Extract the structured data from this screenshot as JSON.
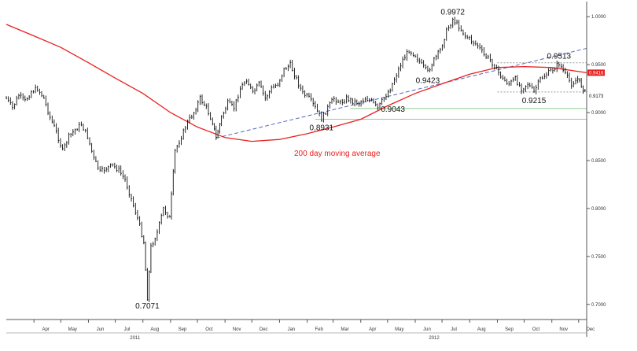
{
  "chart_data": {
    "type": "line",
    "subtype": "ohlc-bars",
    "title": "",
    "xlabel": "",
    "ylabel": "",
    "ylim": [
      0.6875,
      1.0125
    ],
    "x_start": "2011-03-01",
    "x_end": "2012-12-10",
    "grid": false,
    "y_axis_side": "right",
    "y_ticks": [
      {
        "value": 1.0,
        "label": "1.0000"
      },
      {
        "value": 0.95,
        "label": "0.9500"
      },
      {
        "value": 0.9,
        "label": "0.9000"
      },
      {
        "value": 0.85,
        "label": "0.8500"
      },
      {
        "value": 0.8,
        "label": "0.8000"
      },
      {
        "value": 0.75,
        "label": "0.7500"
      },
      {
        "value": 0.7,
        "label": "0.7000"
      }
    ],
    "x_ticks": [
      {
        "date": "2011-04-01",
        "label": "Apr"
      },
      {
        "date": "2011-05-01",
        "label": "May"
      },
      {
        "date": "2011-06-01",
        "label": "Jun"
      },
      {
        "date": "2011-07-01",
        "label": "Jul"
      },
      {
        "date": "2011-08-01",
        "label": "Aug"
      },
      {
        "date": "2011-09-01",
        "label": "Sep"
      },
      {
        "date": "2011-10-01",
        "label": "Oct"
      },
      {
        "date": "2011-11-01",
        "label": "Nov"
      },
      {
        "date": "2011-12-01",
        "label": "Dec"
      },
      {
        "date": "2012-01-01",
        "label": "Jan"
      },
      {
        "date": "2012-02-01",
        "label": "Feb"
      },
      {
        "date": "2012-03-01",
        "label": "Mar"
      },
      {
        "date": "2012-04-01",
        "label": "Apr"
      },
      {
        "date": "2012-05-01",
        "label": "May"
      },
      {
        "date": "2012-06-01",
        "label": "Jun"
      },
      {
        "date": "2012-07-01",
        "label": "Jul"
      },
      {
        "date": "2012-08-01",
        "label": "Aug"
      },
      {
        "date": "2012-09-01",
        "label": "Sep"
      },
      {
        "date": "2012-10-01",
        "label": "Oct"
      },
      {
        "date": "2012-11-01",
        "label": "Nov"
      },
      {
        "date": "2012-12-01",
        "label": "Dec"
      }
    ],
    "year_labels": [
      {
        "date": "2011-08-01",
        "label": "2011"
      },
      {
        "date": "2012-07-01",
        "label": "2012"
      }
    ],
    "series": [
      {
        "name": "price",
        "color": "#111111",
        "points": [
          [
            "2011-03-01",
            0.915
          ],
          [
            "2011-03-08",
            0.905
          ],
          [
            "2011-03-15",
            0.918
          ],
          [
            "2011-03-22",
            0.912
          ],
          [
            "2011-03-29",
            0.922
          ],
          [
            "2011-04-05",
            0.925
          ],
          [
            "2011-04-12",
            0.915
          ],
          [
            "2011-04-19",
            0.895
          ],
          [
            "2011-04-26",
            0.88
          ],
          [
            "2011-05-03",
            0.86
          ],
          [
            "2011-05-10",
            0.875
          ],
          [
            "2011-05-17",
            0.882
          ],
          [
            "2011-05-24",
            0.888
          ],
          [
            "2011-05-31",
            0.875
          ],
          [
            "2011-06-07",
            0.852
          ],
          [
            "2011-06-14",
            0.838
          ],
          [
            "2011-06-21",
            0.842
          ],
          [
            "2011-06-28",
            0.845
          ],
          [
            "2011-07-05",
            0.84
          ],
          [
            "2011-07-12",
            0.83
          ],
          [
            "2011-07-19",
            0.81
          ],
          [
            "2011-07-26",
            0.79
          ],
          [
            "2011-08-02",
            0.765
          ],
          [
            "2011-08-06",
            0.7071
          ],
          [
            "2011-08-10",
            0.76
          ],
          [
            "2011-08-17",
            0.775
          ],
          [
            "2011-08-24",
            0.8
          ],
          [
            "2011-08-31",
            0.79
          ],
          [
            "2011-09-06",
            0.86
          ],
          [
            "2011-09-13",
            0.875
          ],
          [
            "2011-09-20",
            0.89
          ],
          [
            "2011-09-27",
            0.9
          ],
          [
            "2011-10-04",
            0.915
          ],
          [
            "2011-10-11",
            0.905
          ],
          [
            "2011-10-18",
            0.89
          ],
          [
            "2011-10-22",
            0.8735
          ],
          [
            "2011-10-28",
            0.895
          ],
          [
            "2011-11-04",
            0.91
          ],
          [
            "2011-11-11",
            0.905
          ],
          [
            "2011-11-18",
            0.925
          ],
          [
            "2011-11-25",
            0.935
          ],
          [
            "2011-12-02",
            0.92
          ],
          [
            "2011-12-09",
            0.93
          ],
          [
            "2011-12-16",
            0.915
          ],
          [
            "2011-12-23",
            0.925
          ],
          [
            "2011-12-30",
            0.93
          ],
          [
            "2012-01-06",
            0.945
          ],
          [
            "2012-01-13",
            0.95
          ],
          [
            "2012-01-20",
            0.935
          ],
          [
            "2012-01-27",
            0.92
          ],
          [
            "2012-02-03",
            0.915
          ],
          [
            "2012-02-10",
            0.905
          ],
          [
            "2012-02-17",
            0.8931
          ],
          [
            "2012-02-24",
            0.905
          ],
          [
            "2012-03-02",
            0.915
          ],
          [
            "2012-03-09",
            0.91
          ],
          [
            "2012-03-16",
            0.915
          ],
          [
            "2012-03-23",
            0.912
          ],
          [
            "2012-03-30",
            0.91
          ],
          [
            "2012-04-06",
            0.915
          ],
          [
            "2012-04-13",
            0.912
          ],
          [
            "2012-04-20",
            0.9043
          ],
          [
            "2012-04-27",
            0.915
          ],
          [
            "2012-05-04",
            0.925
          ],
          [
            "2012-05-11",
            0.94
          ],
          [
            "2012-05-18",
            0.955
          ],
          [
            "2012-05-25",
            0.965
          ],
          [
            "2012-06-01",
            0.96
          ],
          [
            "2012-06-08",
            0.95
          ],
          [
            "2012-06-15",
            0.9423
          ],
          [
            "2012-06-22",
            0.955
          ],
          [
            "2012-06-29",
            0.965
          ],
          [
            "2012-07-06",
            0.985
          ],
          [
            "2012-07-13",
            0.9972
          ],
          [
            "2012-07-20",
            0.99
          ],
          [
            "2012-07-27",
            0.98
          ],
          [
            "2012-08-03",
            0.975
          ],
          [
            "2012-08-10",
            0.97
          ],
          [
            "2012-08-17",
            0.96
          ],
          [
            "2012-08-24",
            0.955
          ],
          [
            "2012-08-31",
            0.945
          ],
          [
            "2012-09-07",
            0.935
          ],
          [
            "2012-09-14",
            0.93
          ],
          [
            "2012-09-21",
            0.935
          ],
          [
            "2012-09-28",
            0.925
          ],
          [
            "2012-10-05",
            0.93
          ],
          [
            "2012-10-12",
            0.9215
          ],
          [
            "2012-10-19",
            0.935
          ],
          [
            "2012-10-26",
            0.94
          ],
          [
            "2012-11-02",
            0.945
          ],
          [
            "2012-11-09",
            0.9513
          ],
          [
            "2012-11-16",
            0.94
          ],
          [
            "2012-11-23",
            0.93
          ],
          [
            "2012-11-30",
            0.935
          ],
          [
            "2012-12-06",
            0.925
          ],
          [
            "2012-12-10",
            0.9173
          ]
        ]
      },
      {
        "name": "200 day moving average",
        "color": "#e8201e",
        "points": [
          [
            "2011-03-01",
            0.992
          ],
          [
            "2011-04-01",
            0.98
          ],
          [
            "2011-05-01",
            0.968
          ],
          [
            "2011-06-01",
            0.952
          ],
          [
            "2011-07-01",
            0.936
          ],
          [
            "2011-08-01",
            0.92
          ],
          [
            "2011-09-01",
            0.9
          ],
          [
            "2011-10-01",
            0.885
          ],
          [
            "2011-11-01",
            0.874
          ],
          [
            "2011-12-01",
            0.87
          ],
          [
            "2012-01-01",
            0.872
          ],
          [
            "2012-02-01",
            0.878
          ],
          [
            "2012-03-01",
            0.885
          ],
          [
            "2012-04-01",
            0.893
          ],
          [
            "2012-05-01",
            0.907
          ],
          [
            "2012-06-01",
            0.92
          ],
          [
            "2012-07-01",
            0.93
          ],
          [
            "2012-08-01",
            0.94
          ],
          [
            "2012-09-01",
            0.947
          ],
          [
            "2012-10-01",
            0.948
          ],
          [
            "2012-11-01",
            0.947
          ],
          [
            "2012-12-10",
            0.9416
          ]
        ]
      }
    ],
    "trendlines": [
      {
        "name": "support-trendline",
        "style": "dashed",
        "color": "#5566bb",
        "from": [
          "2011-10-22",
          0.8735
        ],
        "to": [
          "2012-12-10",
          0.967
        ]
      },
      {
        "name": "channel-upper",
        "style": "dotted",
        "color": "#999999",
        "from": [
          "2012-09-01",
          0.952
        ],
        "to": [
          "2012-12-10",
          0.952
        ]
      },
      {
        "name": "channel-lower",
        "style": "dotted",
        "color": "#999999",
        "from": [
          "2012-09-01",
          0.9215
        ],
        "to": [
          "2012-12-10",
          0.9215
        ]
      }
    ],
    "horizontal_lines": [
      {
        "name": "level-0.9043",
        "value": 0.9043,
        "color": "#8fce8f",
        "from": "2012-03-20"
      },
      {
        "name": "level-0.8931",
        "value": 0.8931,
        "color": "#8fce8f",
        "from": "2012-02-10"
      }
    ],
    "annotations": [
      {
        "text": "0.7071",
        "date": "2011-08-06",
        "value": 0.7071,
        "pos": "below"
      },
      {
        "text": "0.8931",
        "date": "2012-02-17",
        "value": 0.8931,
        "pos": "below"
      },
      {
        "text": "0.9043",
        "date": "2012-04-20",
        "value": 0.9043,
        "pos": "right"
      },
      {
        "text": "0.9423",
        "date": "2012-06-15",
        "value": 0.9423,
        "pos": "below"
      },
      {
        "text": "0.9972",
        "date": "2012-07-13",
        "value": 0.9972,
        "pos": "above"
      },
      {
        "text": "0.9215",
        "date": "2012-10-12",
        "value": 0.9215,
        "pos": "below"
      },
      {
        "text": "0.9513",
        "date": "2012-11-09",
        "value": 0.9513,
        "pos": "above"
      }
    ],
    "ma_label": "200 day moving average",
    "last_values": [
      {
        "value": 0.9416,
        "label": "0.9416",
        "bg": "#e8201e",
        "fg": "#ffffff"
      },
      {
        "value": 0.9173,
        "label": "0.9173",
        "bg": "#ffffff",
        "fg": "#111111"
      }
    ]
  }
}
